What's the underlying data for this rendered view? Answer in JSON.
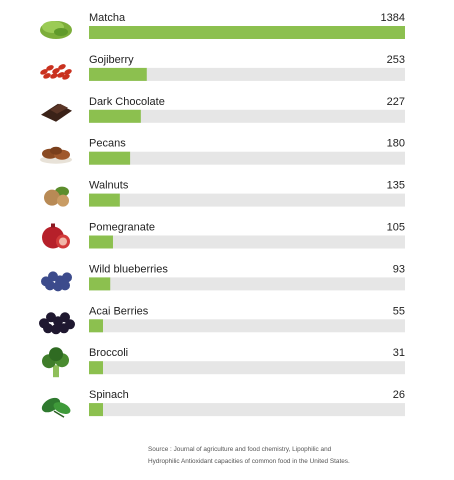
{
  "chart_data": {
    "type": "bar",
    "orientation": "horizontal",
    "categories": [
      "Matcha",
      "Gojiberry",
      "Dark Chocolate",
      "Pecans",
      "Walnuts",
      "Pomegranate",
      "Wild blueberries",
      "Acai Berries",
      "Broccoli",
      "Spinach"
    ],
    "values": [
      1384,
      253,
      227,
      180,
      135,
      105,
      93,
      55,
      31,
      26
    ],
    "value_labels": [
      "1384",
      "253",
      "227",
      "180",
      "135",
      "105",
      "93",
      "55",
      "31",
      "26"
    ],
    "icons": [
      "matcha-powder-icon",
      "gojiberry-icon",
      "dark-chocolate-icon",
      "pecans-icon",
      "walnuts-icon",
      "pomegranate-icon",
      "blueberries-icon",
      "acai-berries-icon",
      "broccoli-icon",
      "spinach-icon"
    ],
    "bar_color": "#8cc04f",
    "track_color": "#e6e6e6",
    "grid": false,
    "legend": "none"
  },
  "source": {
    "line1": "Source : Journal of agriculture and food chemistry, Lipophilic and",
    "line2": "Hydrophilic Antioxidant capacities of common food in the United States."
  }
}
